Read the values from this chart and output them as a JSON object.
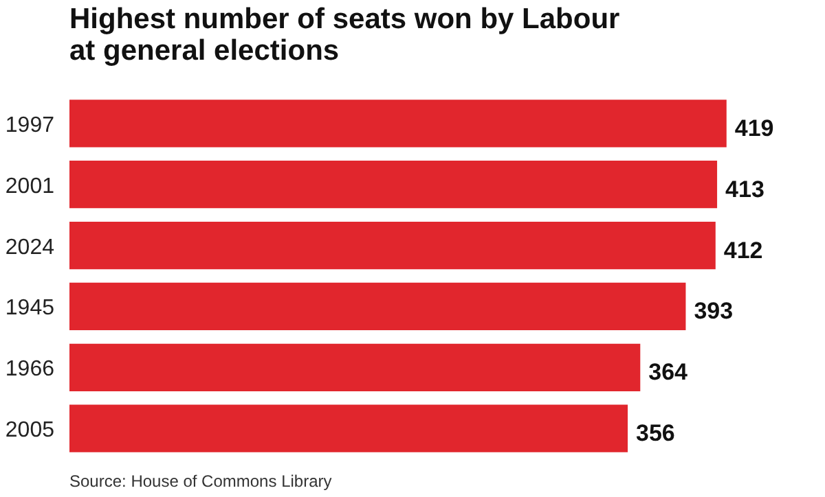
{
  "chart_data": {
    "type": "bar",
    "orientation": "horizontal",
    "title": "Highest number of seats won by Labour at general elections",
    "categories": [
      "1997",
      "2001",
      "2024",
      "1945",
      "1966",
      "2005"
    ],
    "values": [
      419,
      413,
      412,
      393,
      364,
      356
    ],
    "color": "#e1262d",
    "data_labels": true,
    "grid": false,
    "annotations": [
      "Source: House of Commons Library"
    ]
  }
}
